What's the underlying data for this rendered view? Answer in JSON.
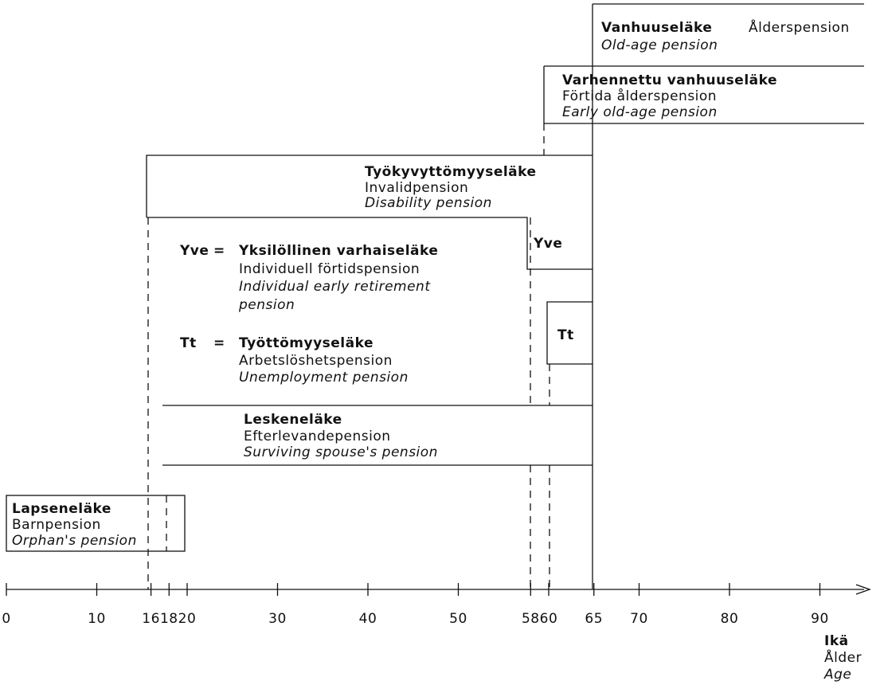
{
  "boxes": {
    "old_age": {
      "fi": "Vanhuuseläke",
      "sv": "Ålderspension",
      "en": "Old-age pension"
    },
    "early_old_age": {
      "fi": "Varhennettu vanhuuseläke",
      "sv": "Förtida ålderspension",
      "en": "Early old-age pension"
    },
    "disability": {
      "fi": "Työkyvyttömyyseläke",
      "sv": "Invalidpension",
      "en": "Disability pension"
    },
    "yve": {
      "abbr": "Yve",
      "eq": "=",
      "fi": "Yksilöllinen varhaiseläke",
      "sv": "Individuell förtidspension",
      "en": [
        "Individual early retirement",
        "pension"
      ]
    },
    "tt": {
      "abbr": "Tt",
      "eq": "=",
      "fi": "Työttömyyseläke",
      "sv": "Arbetslöshetspension",
      "en": "Unemployment pension"
    },
    "survivor": {
      "fi": "Leskeneläke",
      "sv": "Efterlevandepension",
      "en": "Surviving spouse's pension"
    },
    "orphan": {
      "fi": "Lapseneläke",
      "sv": "Barnpension",
      "en": "Orphan's pension"
    }
  },
  "axis": {
    "ticks": [
      0,
      10,
      16,
      18,
      20,
      30,
      40,
      50,
      58,
      60,
      65,
      70,
      80,
      90
    ],
    "fi": "Ikä",
    "sv": "Ålder",
    "en": "Age"
  }
}
